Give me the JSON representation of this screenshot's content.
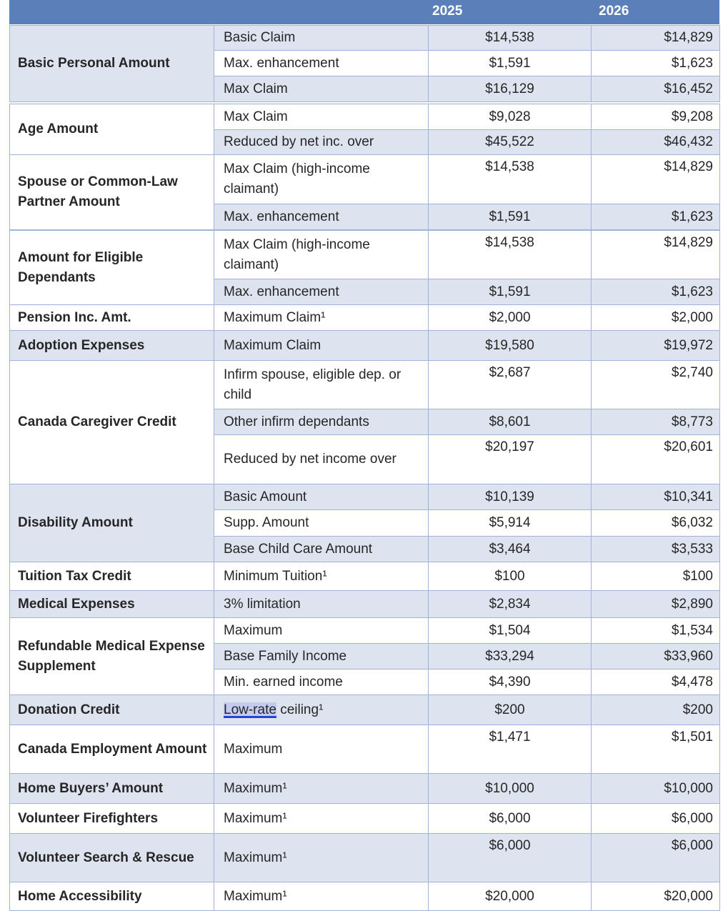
{
  "header": {
    "col_2025": "2025",
    "col_2026": "2026"
  },
  "colors": {
    "header_bg": "#5b80b9",
    "shaded_row": "#dde4f0",
    "border": "#9fb4d8",
    "link_highlight": "#c3cbee"
  },
  "groups": [
    {
      "label": "Basic Personal Amount",
      "rows": [
        {
          "item": "Basic Claim",
          "v2025": "$14,538",
          "v2026": "$14,829"
        },
        {
          "item": "Max. enhancement",
          "v2025": "$1,591",
          "v2026": "$1,623"
        },
        {
          "item": "Max Claim",
          "v2025": "$16,129",
          "v2026": "$16,452"
        }
      ]
    },
    {
      "label": "Age Amount",
      "rows": [
        {
          "item": "Max Claim",
          "v2025": "$9,028",
          "v2026": "$9,208"
        },
        {
          "item": "Reduced by net inc. over",
          "v2025": "$45,522",
          "v2026": "$46,432"
        }
      ]
    },
    {
      "label": "Spouse or Common-Law Partner Amount",
      "rows": [
        {
          "item": "Max Claim (high-income claimant)",
          "v2025": "$14,538",
          "v2026": "$14,829"
        },
        {
          "item": "Max. enhancement",
          "v2025": "$1,591",
          "v2026": "$1,623"
        }
      ]
    },
    {
      "label": "Amount for Eligible Dependants",
      "rows": [
        {
          "item": "Max Claim (high-income claimant)",
          "v2025": "$14,538",
          "v2026": "$14,829"
        },
        {
          "item": "Max. enhancement",
          "v2025": "$1,591",
          "v2026": "$1,623"
        }
      ]
    },
    {
      "label": "Pension Inc. Amt.",
      "rows": [
        {
          "item": "Maximum Claim¹",
          "v2025": "$2,000",
          "v2026": "$2,000"
        }
      ]
    },
    {
      "label": "Adoption Expenses",
      "rows": [
        {
          "item": "Maximum Claim",
          "v2025": "$19,580",
          "v2026": "$19,972"
        }
      ]
    },
    {
      "label": "Canada Caregiver Credit",
      "rows": [
        {
          "item": "Infirm spouse, eligible dep. or child",
          "v2025": "$2,687",
          "v2026": "$2,740"
        },
        {
          "item": "Other infirm dependants",
          "v2025": "$8,601",
          "v2026": "$8,773"
        },
        {
          "item": "Reduced by net income over",
          "v2025": "$20,197",
          "v2026": "$20,601"
        }
      ]
    },
    {
      "label": "Disability Amount",
      "rows": [
        {
          "item": "Basic Amount",
          "v2025": "$10,139",
          "v2026": "$10,341"
        },
        {
          "item": "Supp. Amount",
          "v2025": "$5,914",
          "v2026": "$6,032"
        },
        {
          "item": "Base Child Care Amount",
          "v2025": "$3,464",
          "v2026": "$3,533"
        }
      ]
    },
    {
      "label": "Tuition Tax Credit",
      "rows": [
        {
          "item": "Minimum Tuition¹",
          "v2025": "$100",
          "v2026": "$100"
        }
      ]
    },
    {
      "label": "Medical Expenses",
      "rows": [
        {
          "item": "3% limitation",
          "v2025": "$2,834",
          "v2026": "$2,890"
        }
      ]
    },
    {
      "label": "Refundable Medical Expense Supplement",
      "rows": [
        {
          "item": "Maximum",
          "v2025": "$1,504",
          "v2026": "$1,534"
        },
        {
          "item": "Base Family Income",
          "v2025": "$33,294",
          "v2026": "$33,960"
        },
        {
          "item": "Min. earned income",
          "v2025": "$4,390",
          "v2026": "$4,478"
        }
      ]
    },
    {
      "label": "Donation Credit",
      "rows": [
        {
          "item_link": "Low-rate",
          "item": " ceiling¹",
          "v2025": "$200",
          "v2026": "$200"
        }
      ]
    },
    {
      "label": "Canada Employment Amount",
      "rows": [
        {
          "item": "Maximum",
          "v2025": "$1,471",
          "v2026": "$1,501"
        }
      ]
    },
    {
      "label": "Home Buyers’ Amount",
      "rows": [
        {
          "item": "Maximum¹",
          "v2025": "$10,000",
          "v2026": "$10,000"
        }
      ]
    },
    {
      "label": "Volunteer Firefighters",
      "rows": [
        {
          "item": "Maximum¹",
          "v2025": "$6,000",
          "v2026": "$6,000"
        }
      ]
    },
    {
      "label": "Volunteer Search & Rescue",
      "rows": [
        {
          "item": "Maximum¹",
          "v2025": "$6,000",
          "v2026": "$6,000"
        }
      ]
    },
    {
      "label": "Home Accessibility",
      "rows": [
        {
          "item": "Maximum¹",
          "v2025": "$20,000",
          "v2026": "$20,000"
        }
      ]
    }
  ]
}
